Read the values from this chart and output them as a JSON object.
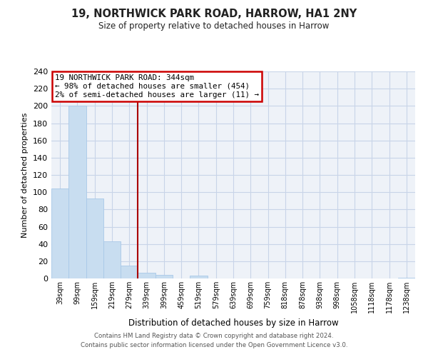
{
  "title": "19, NORTHWICK PARK ROAD, HARROW, HA1 2NY",
  "subtitle": "Size of property relative to detached houses in Harrow",
  "xlabel": "Distribution of detached houses by size in Harrow",
  "ylabel": "Number of detached properties",
  "categories": [
    "39sqm",
    "99sqm",
    "159sqm",
    "219sqm",
    "279sqm",
    "339sqm",
    "399sqm",
    "459sqm",
    "519sqm",
    "579sqm",
    "639sqm",
    "699sqm",
    "759sqm",
    "818sqm",
    "878sqm",
    "938sqm",
    "998sqm",
    "1058sqm",
    "1118sqm",
    "1178sqm",
    "1238sqm"
  ],
  "values": [
    104,
    200,
    93,
    43,
    15,
    7,
    4,
    0,
    3,
    0,
    0,
    0,
    0,
    0,
    0,
    0,
    0,
    0,
    0,
    0,
    1
  ],
  "bar_color": "#c8ddf0",
  "bar_edge_color": "#a8c8e8",
  "vline_x_index": 5,
  "vline_color": "#aa0000",
  "ylim": [
    0,
    240
  ],
  "yticks": [
    0,
    20,
    40,
    60,
    80,
    100,
    120,
    140,
    160,
    180,
    200,
    220,
    240
  ],
  "annotation_title": "19 NORTHWICK PARK ROAD: 344sqm",
  "annotation_line1": "← 98% of detached houses are smaller (454)",
  "annotation_line2": "2% of semi-detached houses are larger (11) →",
  "annotation_box_color": "#ffffff",
  "annotation_box_edge": "#cc0000",
  "footer_line1": "Contains HM Land Registry data © Crown copyright and database right 2024.",
  "footer_line2": "Contains public sector information licensed under the Open Government Licence v3.0.",
  "background_color": "#ffffff",
  "plot_bg_color": "#eef2f8",
  "grid_color": "#c8d4e8"
}
